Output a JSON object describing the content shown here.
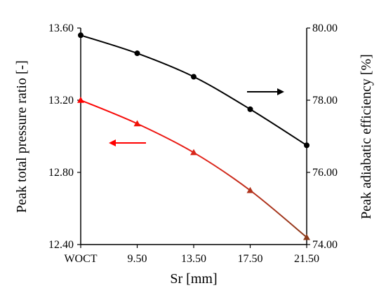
{
  "chart_data": {
    "type": "line",
    "categories": [
      "WOCT",
      "9.50",
      "13.50",
      "17.50",
      "21.50"
    ],
    "xlabel": "Sr [mm]",
    "ylabel_left": "Peak total pressure ratio [-]",
    "ylabel_right": "Peak adiabatic efficiency [%]",
    "ylim_left": [
      12.4,
      13.6
    ],
    "ylim_right": [
      74.0,
      80.0
    ],
    "yticks_left": [
      "12.40",
      "12.80",
      "13.20",
      "13.60"
    ],
    "yticks_right": [
      "74.00",
      "76.00",
      "78.00",
      "80.00"
    ],
    "grid": false,
    "series": [
      {
        "axis": "right",
        "color": "#000000",
        "marker": "circle",
        "values": [
          79.8,
          79.3,
          78.65,
          77.75,
          76.75
        ]
      },
      {
        "axis": "left",
        "color": "#ff0000",
        "color_end": "#8b3a1a",
        "marker": "triangle",
        "values": [
          13.2,
          13.07,
          12.91,
          12.7,
          12.44
        ]
      }
    ],
    "annotations": [
      {
        "type": "arrow",
        "direction": "right",
        "points_to": "right-axis",
        "color": "#000000"
      },
      {
        "type": "arrow",
        "direction": "left",
        "points_to": "left-axis",
        "color": "#ff0000"
      }
    ]
  }
}
